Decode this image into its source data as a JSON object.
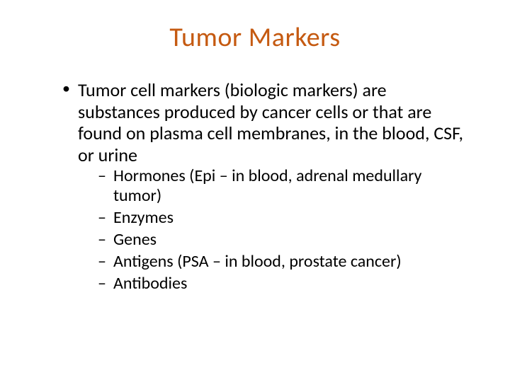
{
  "slide": {
    "title": "Tumor Markers",
    "title_color": "#c55a11",
    "background_color": "#ffffff",
    "text_color": "#000000",
    "title_fontsize": 38,
    "body_fontsize": 26,
    "sub_fontsize": 24,
    "font_family": "Calibri",
    "main_bullet": {
      "text": "Tumor cell markers (biologic markers) are substances produced by cancer cells or that are found on plasma cell membranes, in the blood, CSF, or urine"
    },
    "sub_bullets": [
      {
        "text": "Hormones (Epi – in blood, adrenal medullary tumor)"
      },
      {
        "text": "Enzymes"
      },
      {
        "text": "Genes"
      },
      {
        "text": "Antigens  (PSA – in blood, prostate cancer)"
      },
      {
        "text": "Antibodies"
      }
    ]
  }
}
